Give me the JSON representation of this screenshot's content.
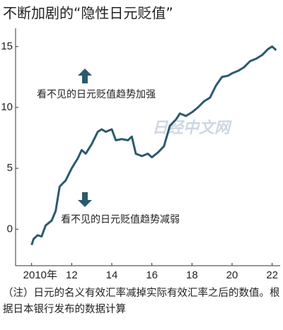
{
  "chart_data": {
    "type": "line",
    "title": "不断加剧的“隐性日元贬值”",
    "x": [
      2010.0,
      2010.1,
      2010.3,
      2010.5,
      2010.7,
      2011.0,
      2011.2,
      2011.4,
      2011.7,
      2012.0,
      2012.3,
      2012.5,
      2012.7,
      2013.0,
      2013.3,
      2013.5,
      2013.7,
      2014.0,
      2014.2,
      2014.5,
      2014.8,
      2015.0,
      2015.2,
      2015.5,
      2015.8,
      2016.0,
      2016.3,
      2016.6,
      2016.9,
      2017.2,
      2017.4,
      2017.7,
      2018.0,
      2018.3,
      2018.6,
      2018.9,
      2019.2,
      2019.5,
      2019.8,
      2020.0,
      2020.3,
      2020.6,
      2020.9,
      2021.2,
      2021.5,
      2021.8,
      2022.0,
      2022.2
    ],
    "series": [
      {
        "color": "#2b5a70",
        "values": [
          -1.3,
          -0.8,
          -0.5,
          -0.6,
          0.3,
          0.7,
          1.5,
          3.5,
          4.0,
          5.0,
          5.8,
          6.5,
          6.2,
          7.0,
          8.0,
          8.2,
          8.0,
          8.2,
          7.3,
          7.4,
          7.3,
          7.6,
          6.2,
          6.0,
          6.2,
          5.9,
          6.3,
          6.8,
          8.5,
          9.0,
          9.5,
          9.3,
          9.6,
          10.0,
          10.5,
          10.8,
          11.8,
          12.5,
          12.6,
          12.8,
          13.0,
          13.3,
          13.8,
          14.0,
          14.3,
          14.8,
          15.0,
          14.7
        ]
      }
    ],
    "xlim": [
      2009.2,
      2022.4
    ],
    "ylim": [
      -3,
      16.5
    ],
    "xticks": [
      {
        "value": 2010,
        "label": "2010年"
      },
      {
        "value": 2012,
        "label": "12"
      },
      {
        "value": 2014,
        "label": "14"
      },
      {
        "value": 2016,
        "label": "16"
      },
      {
        "value": 2018,
        "label": "18"
      },
      {
        "value": 2020,
        "label": "20"
      },
      {
        "value": 2022,
        "label": "22"
      }
    ],
    "yticks": [
      0,
      5,
      10,
      15
    ],
    "annotations": [
      "看不见的日元贬值趋势加强",
      "看不见的日元贬值趋势减弱"
    ],
    "watermark": "日经中文网",
    "note": "（注）日元的名义有效汇率减掉实际有效汇率之后的数值。根据日本银行发布的数据计算"
  }
}
